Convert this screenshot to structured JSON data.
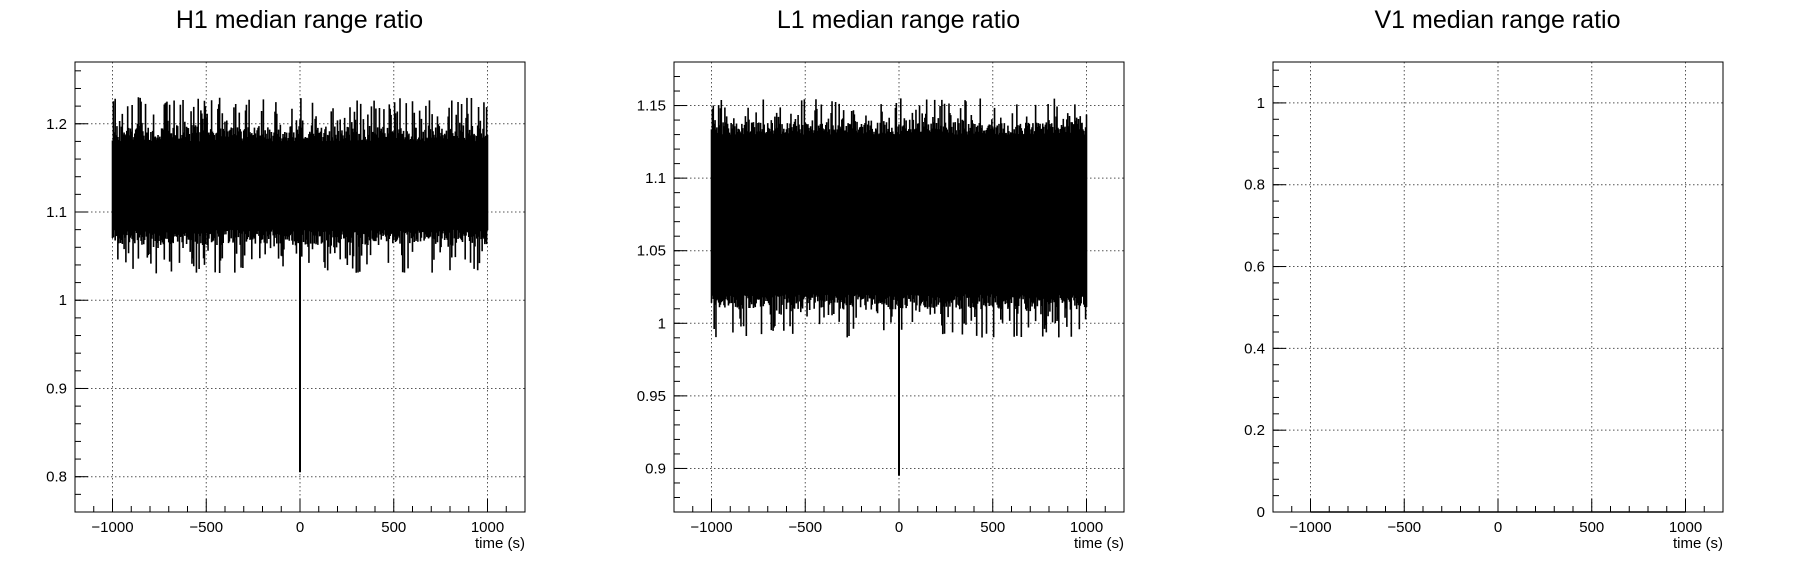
{
  "chart_data": [
    {
      "type": "line",
      "title": "H1 median range ratio",
      "xlabel": "time (s)",
      "ylabel": "",
      "xlim": [
        -1200,
        1200
      ],
      "ylim": [
        0.76,
        1.27
      ],
      "xticks": [
        -1000,
        -500,
        0,
        500,
        1000
      ],
      "xtick_labels": [
        "−1000",
        "−500",
        "0",
        "500",
        "1000"
      ],
      "yticks": [
        0.8,
        0.9,
        1.0,
        1.1,
        1.2
      ],
      "ytick_labels": [
        "0.8",
        "0.9",
        "1",
        "1.1",
        "1.2"
      ],
      "grid": true,
      "legend": "none",
      "series": [
        {
          "x_range": [
            -1000,
            1000
          ],
          "band_core": [
            1.08,
            1.18
          ],
          "band_extreme": [
            1.03,
            1.23
          ],
          "dip": {
            "x": 0,
            "y": 0.805
          },
          "color": "#000000"
        }
      ]
    },
    {
      "type": "line",
      "title": "L1 median range ratio",
      "xlabel": "time (s)",
      "ylabel": "",
      "xlim": [
        -1200,
        1200
      ],
      "ylim": [
        0.87,
        1.18
      ],
      "xticks": [
        -1000,
        -500,
        0,
        500,
        1000
      ],
      "xtick_labels": [
        "−1000",
        "−500",
        "0",
        "500",
        "1000"
      ],
      "yticks": [
        0.9,
        0.95,
        1.0,
        1.05,
        1.1,
        1.15
      ],
      "ytick_labels": [
        "0.9",
        "0.95",
        "1",
        "1.05",
        "1.1",
        "1.15"
      ],
      "grid": true,
      "legend": "none",
      "series": [
        {
          "x_range": [
            -1000,
            1000
          ],
          "band_core": [
            1.02,
            1.13
          ],
          "band_extreme": [
            0.99,
            1.155
          ],
          "dip": {
            "x": 0,
            "y": 0.895
          },
          "color": "#000000"
        }
      ]
    },
    {
      "type": "line",
      "title": "V1 median range ratio",
      "xlabel": "time (s)",
      "ylabel": "",
      "xlim": [
        -1200,
        1200
      ],
      "ylim": [
        0,
        1.1
      ],
      "xticks": [
        -1000,
        -500,
        0,
        500,
        1000
      ],
      "xtick_labels": [
        "−1000",
        "−500",
        "0",
        "500",
        "1000"
      ],
      "yticks": [
        0,
        0.2,
        0.4,
        0.6,
        0.8,
        1
      ],
      "ytick_labels": [
        "0",
        "0.2",
        "0.4",
        "0.6",
        "0.8",
        "1"
      ],
      "grid": true,
      "legend": "none",
      "series": [
        {
          "x_range": [
            -1000,
            1000
          ],
          "constant_value": 0,
          "color": "#000000"
        }
      ]
    }
  ]
}
